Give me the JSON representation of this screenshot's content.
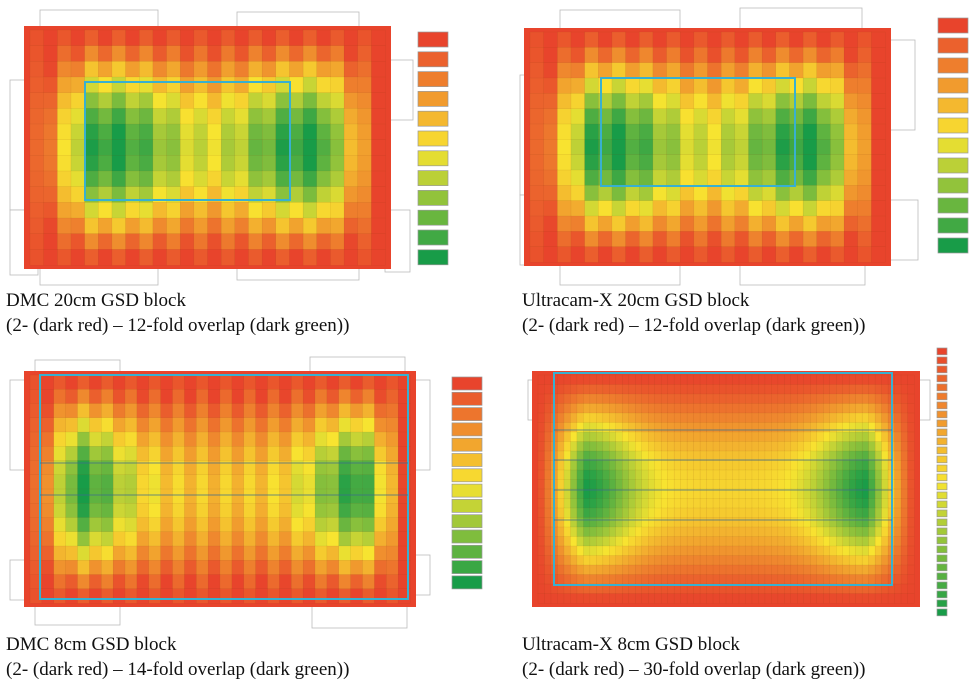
{
  "panels": [
    {
      "title": "DMC 20cm GSD block",
      "subtitle": "(2- (dark red) – 12-fold overlap (dark green))",
      "max_overlap": 12
    },
    {
      "title": "Ultracam-X 20cm GSD block",
      "subtitle": "(2- (dark red) – 12-fold overlap (dark green))",
      "max_overlap": 12
    },
    {
      "title": "DMC 8cm GSD block",
      "subtitle": "(2- (dark red) – 14-fold overlap (dark green))",
      "max_overlap": 14
    },
    {
      "title": "Ultracam-X 8cm GSD block",
      "subtitle": "(2- (dark red) – 30-fold overlap (dark green))",
      "max_overlap": 30
    }
  ],
  "colors": {
    "low_overlap": "#e8442c",
    "mid_overlap": "#f8e430",
    "high_overlap": "#189c48",
    "block_outline": "#38b0d0"
  }
}
